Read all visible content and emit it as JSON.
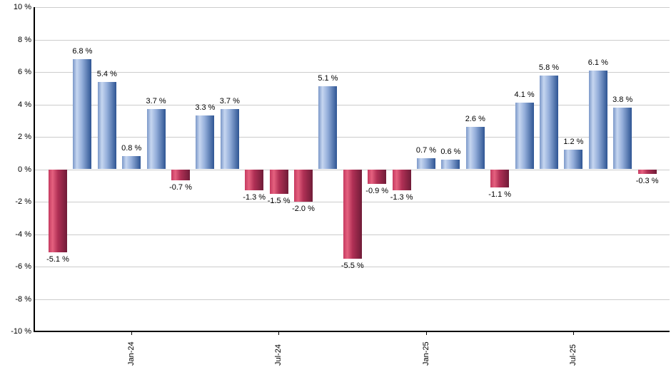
{
  "chart_data": {
    "type": "bar",
    "title": "",
    "xlabel": "",
    "ylabel": "",
    "values": [
      -5.1,
      6.8,
      5.4,
      0.8,
      3.7,
      -0.7,
      3.3,
      3.7,
      -1.3,
      -1.5,
      -2.0,
      5.1,
      -5.5,
      -0.9,
      -1.3,
      0.7,
      0.6,
      2.6,
      -1.1,
      4.1,
      5.8,
      1.2,
      6.1,
      3.8,
      -0.3
    ],
    "value_label_suffix": " %",
    "x_ticks": [
      {
        "bar_index": 3,
        "label": "Jan-24"
      },
      {
        "bar_index": 9,
        "label": "Jul-24"
      },
      {
        "bar_index": 15,
        "label": "Jan-25"
      },
      {
        "bar_index": 21,
        "label": "Jul-25"
      }
    ],
    "y_tick_labels": [
      "10 %",
      "8 %",
      "6 %",
      "4 %",
      "2 %",
      "0 %",
      "-2 %",
      "-4 %",
      "-6 %",
      "-8 %",
      "-10 %"
    ],
    "ylim": [
      -10,
      10
    ],
    "y_step": 2,
    "grid": true,
    "legend": "none",
    "colors": {
      "positive_edge_left": "#7b98c9",
      "positive_light": "#c6d6f0",
      "positive_mid": "#94aeda",
      "positive_dark": "#2e5593",
      "negative_edge_left": "#c53a60",
      "negative_light": "#e5617f",
      "negative_mid": "#b03055",
      "negative_dark": "#701c38",
      "gridline": "#cccccc",
      "axis": "#000000",
      "label_text": "#000000",
      "background": "#ffffff"
    }
  }
}
